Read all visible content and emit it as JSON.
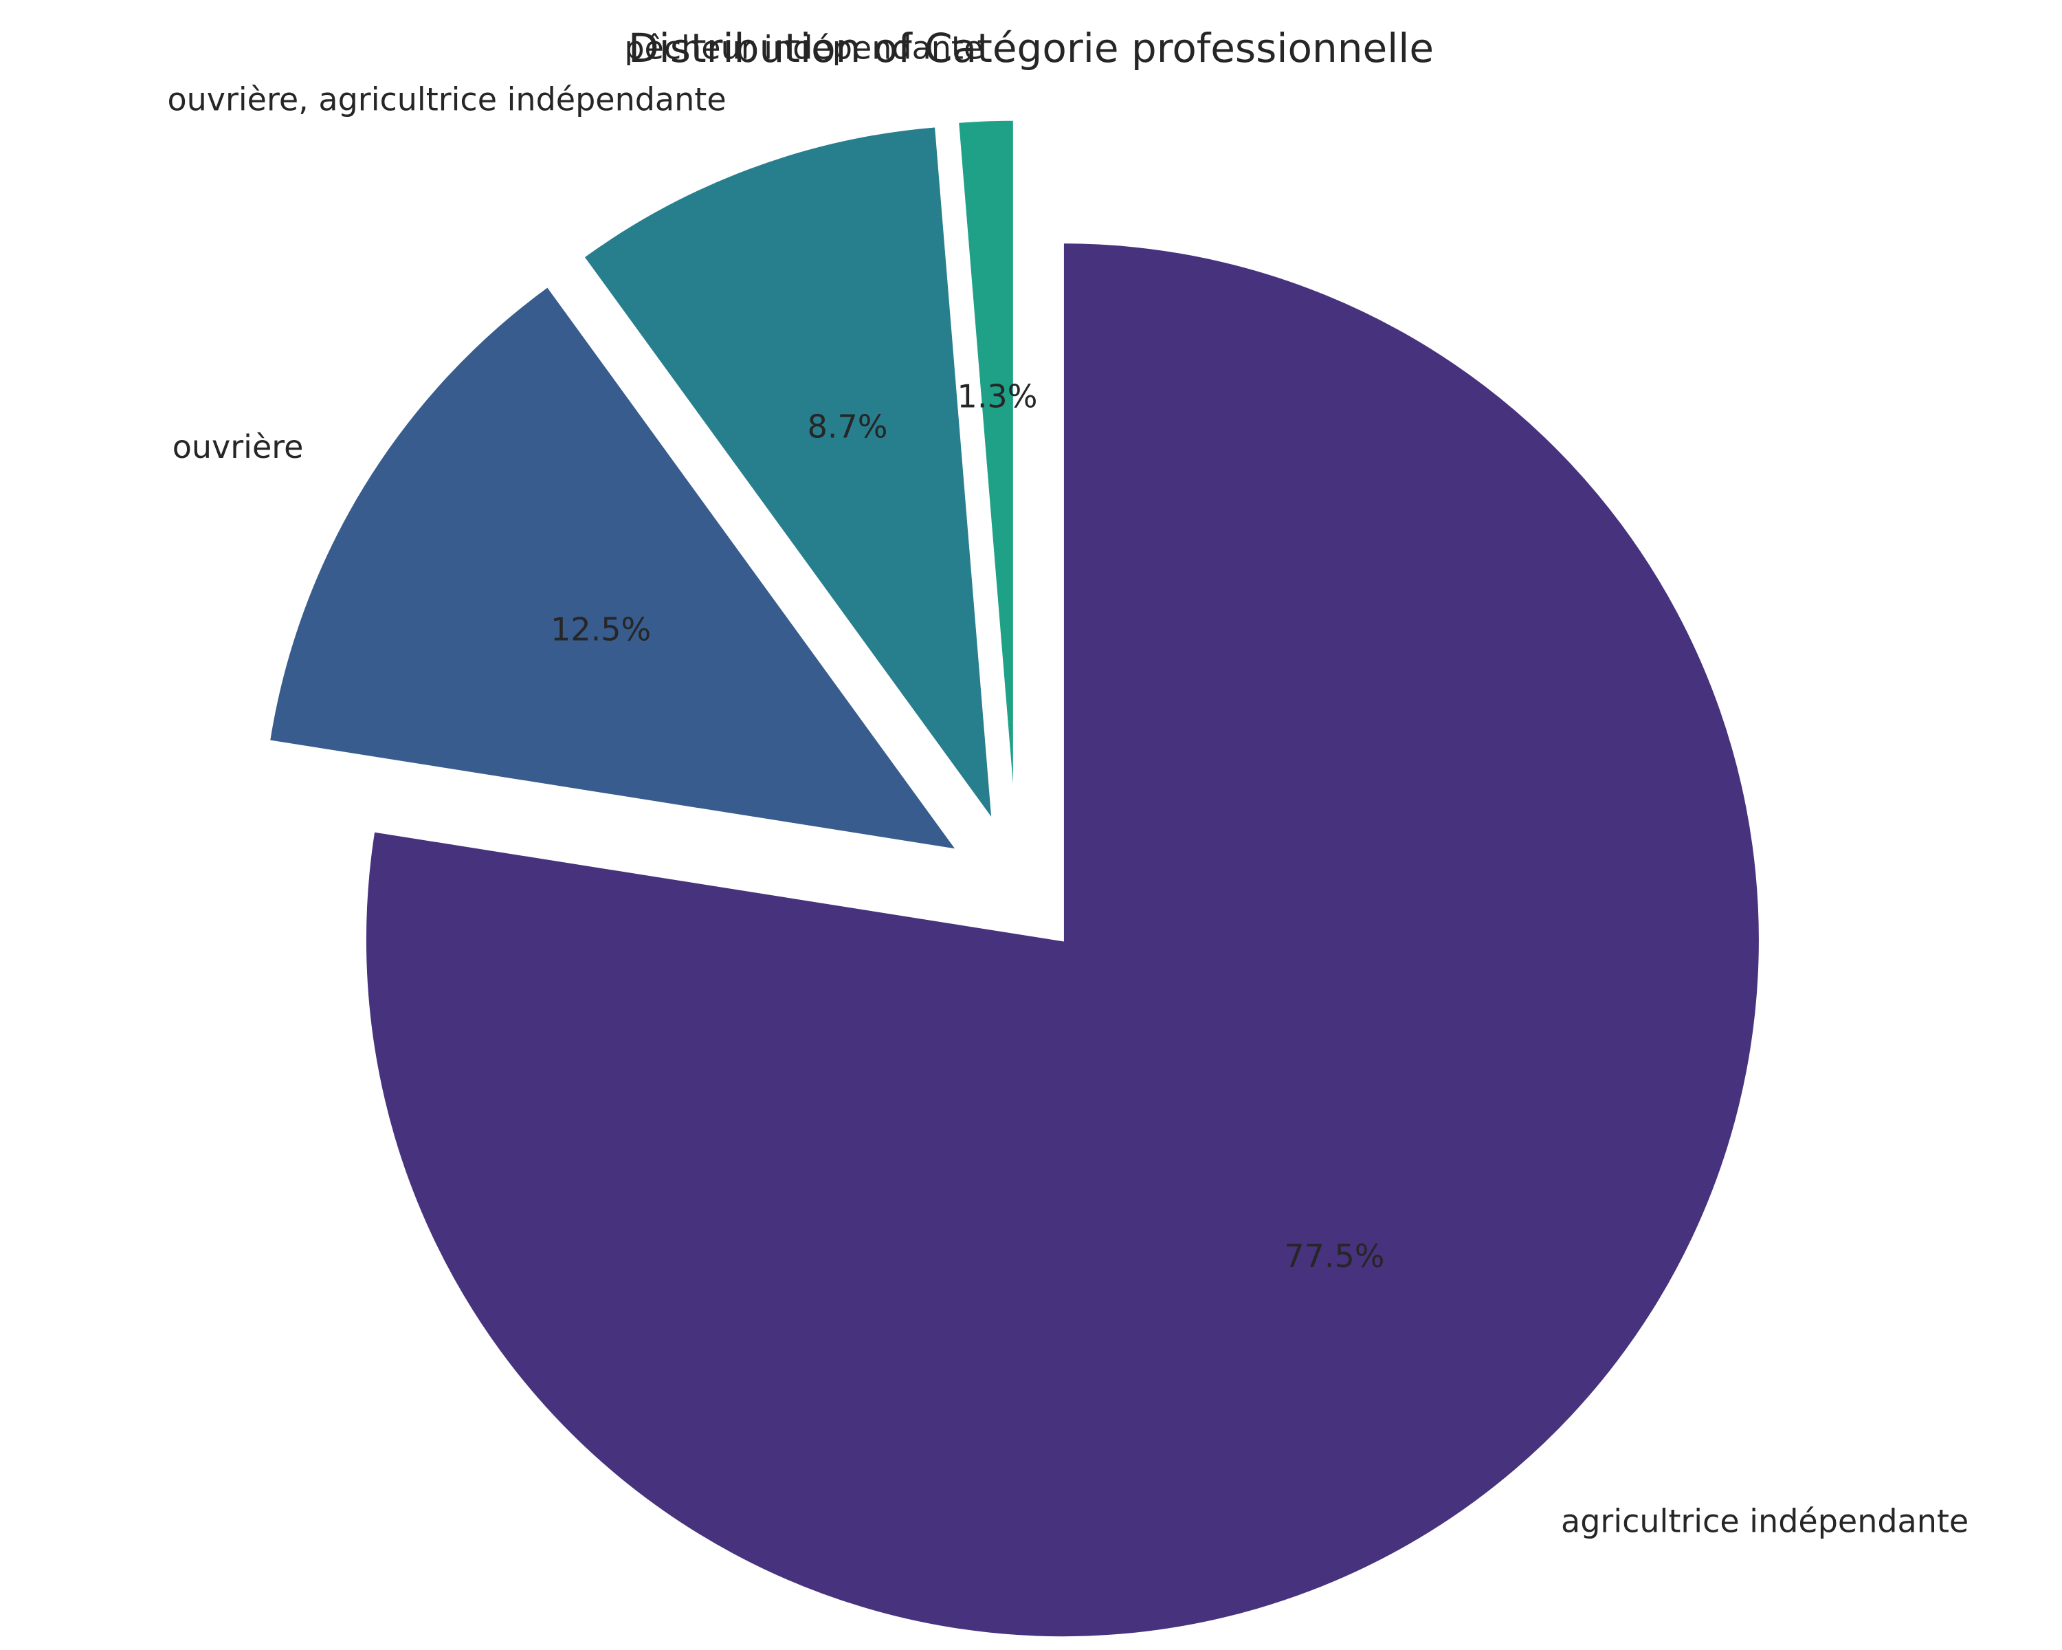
{
  "chart_data": {
    "type": "pie",
    "title": "Distribution of Catégorie professionnelle",
    "slices": [
      {
        "label": "agricultrice indépendante",
        "percent": 77.5,
        "pct_label": "77.5%",
        "color": "#47327e"
      },
      {
        "label": "ouvrière",
        "percent": 12.5,
        "pct_label": "12.5%",
        "color": "#375c8d"
      },
      {
        "label": "ouvrière, agricultrice indépendante",
        "percent": 8.7,
        "pct_label": "8.7%",
        "color": "#277f8d"
      },
      {
        "label": "pêcheur indépendante",
        "percent": 1.3,
        "pct_label": "1.3%",
        "color": "#1fa187"
      }
    ],
    "start_angle_deg": 90,
    "direction": "clockwise",
    "exploded": true
  }
}
